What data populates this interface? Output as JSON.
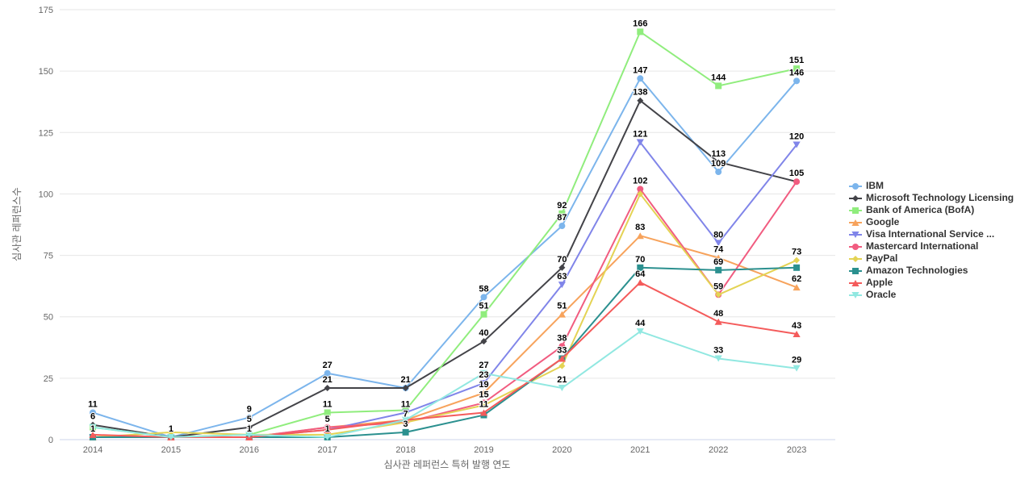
{
  "chart_data": {
    "type": "line",
    "title": "",
    "xlabel": "심사관 레퍼런스 특허 발행 연도",
    "ylabel": "심사관 레퍼런스수",
    "categories": [
      "2014",
      "2015",
      "2016",
      "2017",
      "2018",
      "2019",
      "2020",
      "2021",
      "2022",
      "2023"
    ],
    "ylim": [
      0,
      175
    ],
    "yticks": [
      0,
      25,
      50,
      75,
      100,
      125,
      150,
      175
    ],
    "grid": true,
    "legend_position": "right",
    "grid_color": "#e6e6e6",
    "axis_line_color": "#ccd6eb",
    "series": [
      {
        "name": "IBM",
        "color": "#7cb5ec",
        "marker": "circle",
        "values": [
          11,
          1,
          9,
          27,
          21,
          58,
          87,
          147,
          109,
          146
        ],
        "label_shown": [
          1,
          1,
          1,
          1,
          1,
          1,
          1,
          1,
          1,
          1
        ]
      },
      {
        "name": "Microsoft Technology Licensing",
        "color": "#434348",
        "marker": "diamond",
        "values": [
          6,
          1,
          5,
          21,
          21,
          40,
          70,
          138,
          113,
          105
        ],
        "label_shown": [
          1,
          0,
          1,
          1,
          0,
          1,
          1,
          1,
          1,
          0
        ]
      },
      {
        "name": "Bank of America (BofA)",
        "color": "#90ed7d",
        "marker": "square",
        "values": [
          5,
          1,
          2,
          11,
          12,
          51,
          92,
          166,
          144,
          151
        ],
        "label_shown": [
          0,
          0,
          0,
          1,
          0,
          1,
          1,
          1,
          1,
          1
        ]
      },
      {
        "name": "Google",
        "color": "#f7a35c",
        "marker": "triangle",
        "values": [
          1,
          1,
          1,
          5,
          8,
          19,
          51,
          83,
          74,
          62
        ],
        "label_shown": [
          1,
          0,
          1,
          1,
          0,
          1,
          1,
          1,
          1,
          1
        ]
      },
      {
        "name": "Visa International Service ...",
        "color": "#8085e9",
        "marker": "triangle-down",
        "values": [
          1,
          1,
          1,
          4,
          11,
          23,
          63,
          121,
          80,
          120
        ],
        "label_shown": [
          0,
          0,
          0,
          0,
          1,
          1,
          1,
          1,
          1,
          1
        ]
      },
      {
        "name": "Mastercard International",
        "color": "#f15c80",
        "marker": "circle",
        "values": [
          1,
          1,
          1,
          5,
          7,
          15,
          38,
          102,
          59,
          105
        ],
        "label_shown": [
          0,
          0,
          0,
          0,
          1,
          1,
          1,
          1,
          1,
          1
        ]
      },
      {
        "name": "PayPal",
        "color": "#e4d354",
        "marker": "diamond",
        "values": [
          1,
          3,
          2,
          2,
          7,
          14,
          30,
          100,
          59,
          73
        ],
        "label_shown": [
          0,
          0,
          0,
          0,
          0,
          0,
          0,
          0,
          0,
          1
        ]
      },
      {
        "name": "Amazon Technologies",
        "color": "#2b908f",
        "marker": "square",
        "values": [
          1,
          1,
          1,
          1,
          3,
          10,
          33,
          70,
          69,
          70
        ],
        "label_shown": [
          0,
          0,
          0,
          1,
          1,
          0,
          1,
          1,
          1,
          0
        ]
      },
      {
        "name": "Apple",
        "color": "#f45b5b",
        "marker": "triangle",
        "values": [
          2,
          1,
          1,
          4,
          8,
          11,
          33,
          64,
          48,
          43
        ],
        "label_shown": [
          0,
          0,
          0,
          0,
          0,
          1,
          0,
          1,
          1,
          1
        ]
      },
      {
        "name": "Oracle",
        "color": "#91e8e1",
        "marker": "triangle-down",
        "values": [
          5,
          1,
          2,
          1,
          8,
          27,
          21,
          44,
          33,
          29
        ],
        "label_shown": [
          0,
          0,
          0,
          0,
          0,
          1,
          1,
          1,
          1,
          1
        ]
      }
    ]
  }
}
